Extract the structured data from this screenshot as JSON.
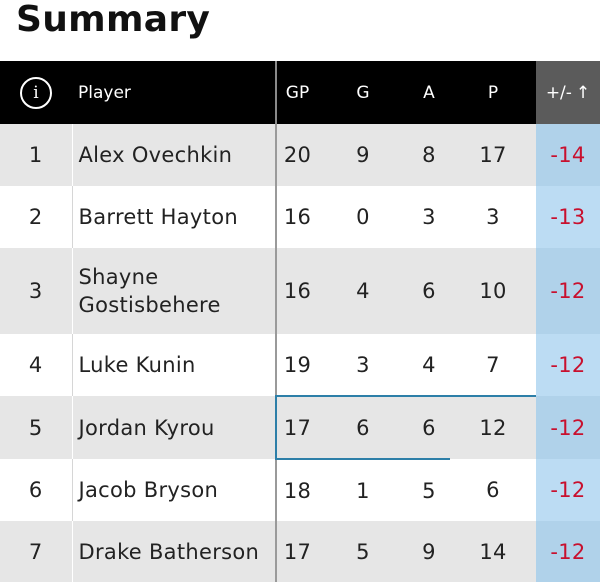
{
  "title": "Summary",
  "header": {
    "info_glyph": "i",
    "player": "Player",
    "gp": "GP",
    "g": "G",
    "a": "A",
    "p": "P",
    "plus_minus": "+/-",
    "sort_glyph": "↑"
  },
  "rows": [
    {
      "rank": "1",
      "name": "Alex Ovechkin",
      "gp": "20",
      "g": "9",
      "a": "8",
      "p": "17",
      "pm": "-14"
    },
    {
      "rank": "2",
      "name": "Barrett Hayton",
      "gp": "16",
      "g": "0",
      "a": "3",
      "p": "3",
      "pm": "-13"
    },
    {
      "rank": "3",
      "name": "Shayne Gostisbehere",
      "gp": "16",
      "g": "4",
      "a": "6",
      "p": "10",
      "pm": "-12"
    },
    {
      "rank": "4",
      "name": "Luke Kunin",
      "gp": "19",
      "g": "3",
      "a": "4",
      "p": "7",
      "pm": "-12"
    },
    {
      "rank": "5",
      "name": "Jordan Kyrou",
      "gp": "17",
      "g": "6",
      "a": "6",
      "p": "12",
      "pm": "-12"
    },
    {
      "rank": "6",
      "name": "Jacob Bryson",
      "gp": "18",
      "g": "1",
      "a": "5",
      "p": "6",
      "pm": "-12"
    },
    {
      "rank": "7",
      "name": "Drake Batherson",
      "gp": "17",
      "g": "5",
      "a": "9",
      "p": "14",
      "pm": "-12"
    }
  ],
  "colors": {
    "header_bg": "#000000",
    "sorted_header_bg": "#5b5b5b",
    "sorted_column_bg": "#bcdcf3",
    "negative_text": "#c8102e",
    "row_alt_bg": "#e6e6e6"
  }
}
